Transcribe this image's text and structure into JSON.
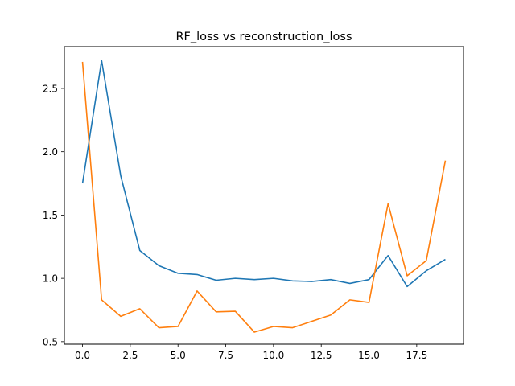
{
  "chart_data": {
    "type": "line",
    "title": "RF_loss vs reconstruction_loss",
    "xlabel": "",
    "ylabel": "",
    "xlim": [
      -0.95,
      19.95
    ],
    "ylim": [
      0.48,
      2.83
    ],
    "xticks": [
      0.0,
      2.5,
      5.0,
      7.5,
      10.0,
      12.5,
      15.0,
      17.5
    ],
    "xtick_labels": [
      "0.0",
      "2.5",
      "5.0",
      "7.5",
      "10.0",
      "12.5",
      "15.0",
      "17.5"
    ],
    "yticks": [
      0.5,
      1.0,
      1.5,
      2.0,
      2.5
    ],
    "ytick_labels": [
      "0.5",
      "1.0",
      "1.5",
      "2.0",
      "2.5"
    ],
    "grid": false,
    "x": [
      0,
      1,
      2,
      3,
      4,
      5,
      6,
      7,
      8,
      9,
      10,
      11,
      12,
      13,
      14,
      15,
      16,
      17,
      18,
      19
    ],
    "series": [
      {
        "color": "#1f77b4",
        "values": [
          1.75,
          2.72,
          1.81,
          1.22,
          1.1,
          1.04,
          1.03,
          0.985,
          1.0,
          0.99,
          1.0,
          0.98,
          0.975,
          0.99,
          0.96,
          0.99,
          1.18,
          0.935,
          1.06,
          1.15
        ]
      },
      {
        "color": "#ff7f0e",
        "values": [
          2.71,
          0.83,
          0.7,
          0.76,
          0.61,
          0.62,
          0.9,
          0.735,
          0.74,
          0.575,
          0.62,
          0.61,
          0.66,
          0.71,
          0.83,
          0.81,
          1.59,
          1.02,
          1.14,
          1.93
        ]
      }
    ]
  }
}
